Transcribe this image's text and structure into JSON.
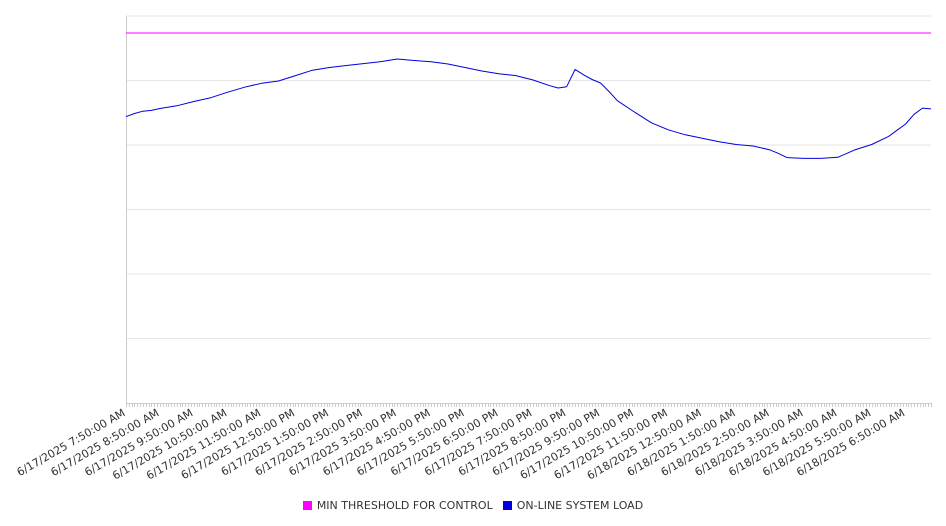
{
  "chart_data": {
    "type": "line",
    "title": "",
    "xlabel": "",
    "ylabel": "",
    "grid": true,
    "legend_position": "bottom",
    "x_start": "6/17/2025 7:50:00 AM",
    "x_end": "6/18/2025 7:35:00 AM",
    "x_ticks": [
      "6/17/2025 7:50:00 AM",
      "6/17/2025 8:50:00 AM",
      "6/17/2025 9:50:00 AM",
      "6/17/2025 10:50:00 AM",
      "6/17/2025 11:50:00 AM",
      "6/17/2025 12:50:00 PM",
      "6/17/2025 1:50:00 PM",
      "6/17/2025 2:50:00 PM",
      "6/17/2025 3:50:00 PM",
      "6/17/2025 4:50:00 PM",
      "6/17/2025 5:50:00 PM",
      "6/17/2025 6:50:00 PM",
      "6/17/2025 7:50:00 PM",
      "6/17/2025 8:50:00 PM",
      "6/17/2025 9:50:00 PM",
      "6/17/2025 10:50:00 PM",
      "6/17/2025 11:50:00 PM",
      "6/18/2025 12:50:00 AM",
      "6/18/2025 1:50:00 AM",
      "6/18/2025 2:50:00 AM",
      "6/18/2025 3:50:00 AM",
      "6/18/2025 4:50:00 AM",
      "6/18/2025 5:50:00 AM",
      "6/18/2025 6:50:00 AM"
    ],
    "ylim": [
      0,
      100
    ],
    "y_gridlines": [
      0,
      16.67,
      33.33,
      50,
      66.67,
      83.33,
      100
    ],
    "series": [
      {
        "name": "MIN THRESHOLD FOR CONTROL",
        "color": "#ff00ff",
        "x": [
          "6/17/2025 7:50:00 AM",
          "6/18/2025 7:35:00 AM"
        ],
        "y": [
          95.6,
          95.6
        ]
      },
      {
        "name": "ON-LINE SYSTEM LOAD",
        "color": "#0000dd",
        "x": [
          "6/17/2025 7:50:00 AM",
          "6/17/2025 8:05:00 AM",
          "6/17/2025 8:20:00 AM",
          "6/17/2025 8:35:00 AM",
          "6/17/2025 8:50:00 AM",
          "6/17/2025 9:20:00 AM",
          "6/17/2025 9:50:00 AM",
          "6/17/2025 10:20:00 AM",
          "6/17/2025 10:50:00 AM",
          "6/17/2025 11:20:00 AM",
          "6/17/2025 11:50:00 AM",
          "6/17/2025 12:20:00 PM",
          "6/17/2025 12:50:00 PM",
          "6/17/2025 1:20:00 PM",
          "6/17/2025 1:50:00 PM",
          "6/17/2025 2:20:00 PM",
          "6/17/2025 2:50:00 PM",
          "6/17/2025 3:20:00 PM",
          "6/17/2025 3:50:00 PM",
          "6/17/2025 4:20:00 PM",
          "6/17/2025 4:50:00 PM",
          "6/17/2025 5:20:00 PM",
          "6/17/2025 5:50:00 PM",
          "6/17/2025 6:20:00 PM",
          "6/17/2025 6:50:00 PM",
          "6/17/2025 7:20:00 PM",
          "6/17/2025 7:50:00 PM",
          "6/17/2025 8:20:00 PM",
          "6/17/2025 8:35:00 PM",
          "6/17/2025 8:50:00 PM",
          "6/17/2025 9:05:00 PM",
          "6/17/2025 9:20:00 PM",
          "6/17/2025 9:35:00 PM",
          "6/17/2025 9:50:00 PM",
          "6/17/2025 10:05:00 PM",
          "6/17/2025 10:20:00 PM",
          "6/17/2025 10:50:00 PM",
          "6/17/2025 11:20:00 PM",
          "6/17/2025 11:50:00 PM",
          "6/18/2025 12:20:00 AM",
          "6/18/2025 12:50:00 AM",
          "6/18/2025 1:20:00 AM",
          "6/18/2025 1:50:00 AM",
          "6/18/2025 2:20:00 AM",
          "6/18/2025 2:50:00 AM",
          "6/18/2025 3:05:00 AM",
          "6/18/2025 3:20:00 AM",
          "6/18/2025 3:50:00 AM",
          "6/18/2025 4:20:00 AM",
          "6/18/2025 4:50:00 AM",
          "6/18/2025 5:20:00 AM",
          "6/18/2025 5:50:00 AM",
          "6/18/2025 6:20:00 AM",
          "6/18/2025 6:35:00 AM",
          "6/18/2025 6:50:00 AM",
          "6/18/2025 7:05:00 AM",
          "6/18/2025 7:20:00 AM",
          "6/18/2025 7:35:00 AM"
        ],
        "y": [
          74.0,
          74.8,
          75.4,
          75.6,
          76.1,
          76.8,
          77.9,
          78.9,
          80.3,
          81.6,
          82.6,
          83.2,
          84.6,
          86.0,
          86.7,
          87.2,
          87.7,
          88.2,
          88.9,
          88.5,
          88.2,
          87.6,
          86.7,
          85.8,
          85.1,
          84.6,
          83.5,
          82.0,
          81.4,
          81.7,
          86.2,
          84.8,
          83.6,
          82.7,
          80.5,
          78.1,
          75.2,
          72.4,
          70.6,
          69.3,
          68.4,
          67.5,
          66.8,
          66.4,
          65.4,
          64.5,
          63.4,
          63.2,
          63.2,
          63.5,
          65.4,
          66.8,
          68.9,
          70.5,
          72.1,
          74.6,
          76.2,
          76.0
        ]
      }
    ]
  }
}
